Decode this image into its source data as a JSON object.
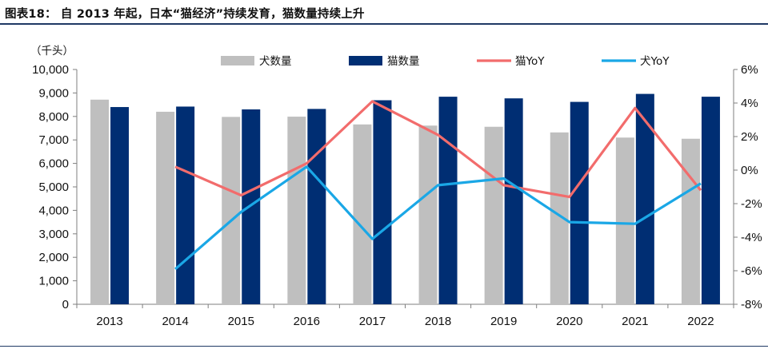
{
  "title": "图表18： 自 2013 年起，日本“猫经济”持续发育，猫数量持续上升",
  "chart_data": {
    "type": "bar",
    "categories": [
      "2013",
      "2014",
      "2015",
      "2016",
      "2017",
      "2018",
      "2019",
      "2020",
      "2021",
      "2022"
    ],
    "unit_label": "（千头）",
    "left_axis": {
      "min": 0,
      "max": 10000,
      "step": 1000,
      "ticks": [
        "0",
        "1,000",
        "2,000",
        "3,000",
        "4,000",
        "5,000",
        "6,000",
        "7,000",
        "8,000",
        "9,000",
        "10,000"
      ]
    },
    "right_axis": {
      "min": -8,
      "max": 6,
      "step": 2,
      "ticks": [
        "-8%",
        "-6%",
        "-4%",
        "-2%",
        "0%",
        "2%",
        "4%",
        "6%"
      ]
    },
    "series": [
      {
        "name": "犬数量",
        "type": "bar",
        "axis": "left",
        "color": "#bfbfbf",
        "values": [
          8715,
          8200,
          7980,
          7990,
          7660,
          7610,
          7560,
          7320,
          7100,
          7050
        ]
      },
      {
        "name": "猫数量",
        "type": "bar",
        "axis": "left",
        "color": "#002e73",
        "values": [
          8400,
          8420,
          8300,
          8320,
          8690,
          8840,
          8770,
          8620,
          8960,
          8840
        ]
      },
      {
        "name": "猫YoY",
        "type": "line",
        "axis": "right",
        "color": "#f26c6c",
        "values": [
          null,
          0.2,
          -1.5,
          0.4,
          4.1,
          2.1,
          -0.9,
          -1.6,
          3.7,
          -1.2
        ]
      },
      {
        "name": "犬YoY",
        "type": "line",
        "axis": "right",
        "color": "#1aa7e6",
        "values": [
          null,
          -5.9,
          -2.5,
          0.2,
          -4.1,
          -0.9,
          -0.5,
          -3.1,
          -3.2,
          -0.8
        ]
      }
    ],
    "legend_position": "top"
  }
}
